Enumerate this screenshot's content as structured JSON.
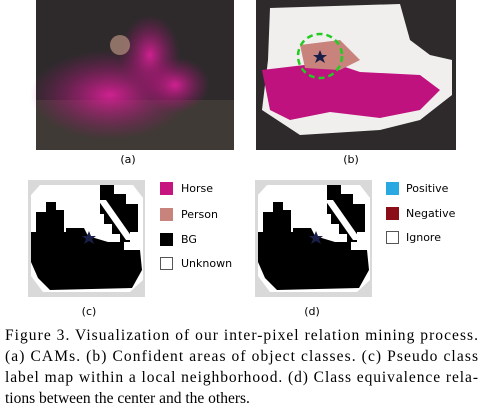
{
  "panel_labels": [
    "(a)",
    "(b)",
    "(c)",
    "(d)"
  ],
  "legend_c": [
    "Horse",
    "Person",
    "BG",
    "Unknown"
  ],
  "legend_d": [
    "Positive",
    "Negative",
    "Ignore"
  ],
  "caption_lines": [
    "Figure 3.  Visualization of our inter-pixel relation mining process.",
    "(a) CAMs. (b) Confident areas of object classes. (c) Pseudo class",
    "label map within a local neighborhood. (d) Class equivalence rela-",
    "tions between the center and the others."
  ]
}
